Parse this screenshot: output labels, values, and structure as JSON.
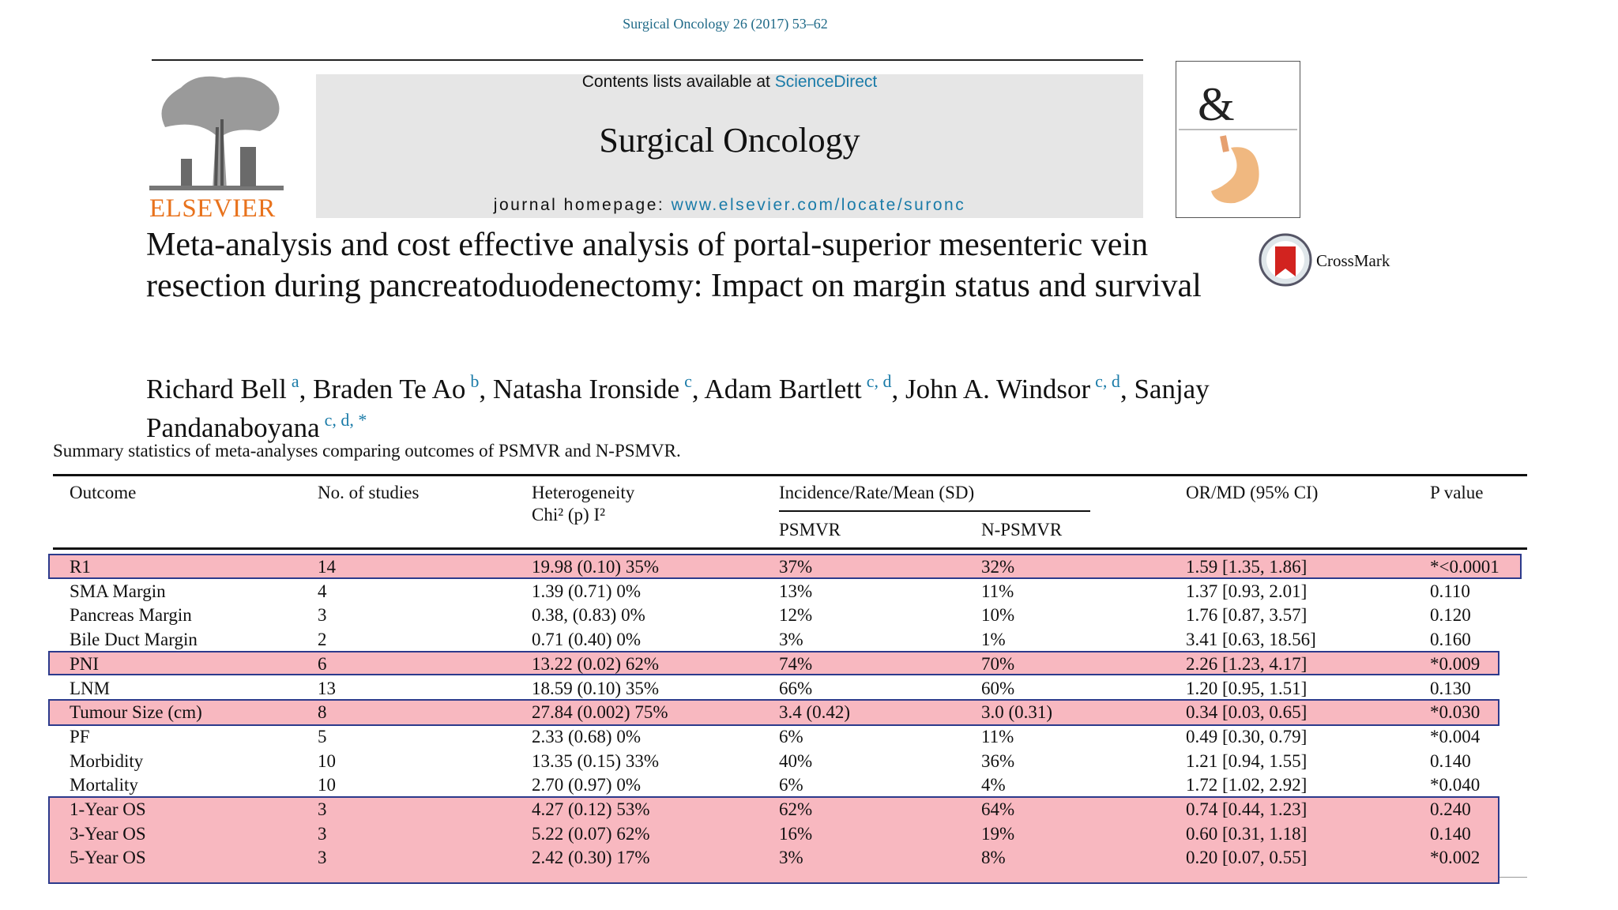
{
  "header": {
    "journal_ref": "Surgical Oncology 26 (2017) 53–62",
    "contents_label": "Contents lists available at",
    "contents_link": "ScienceDirect",
    "journal": "Surgical Oncology",
    "homepage_label": "journal homepage:",
    "homepage_url": "www.elsevier.com/locate/suronc",
    "publisher": "ELSEVIER",
    "crossmark": "CrossMark"
  },
  "article": {
    "title": "Meta-analysis and cost effective analysis of portal-superior mesenteric vein resection during pancreatoduodenectomy: Impact on margin status and survival",
    "authors": [
      {
        "name": "Richard Bell",
        "affil": "a"
      },
      {
        "name": "Braden Te Ao",
        "affil": "b"
      },
      {
        "name": "Natasha Ironside",
        "affil": "c"
      },
      {
        "name": "Adam Bartlett",
        "affil": "c, d"
      },
      {
        "name": "John A. Windsor",
        "affil": "c, d"
      },
      {
        "name": "Sanjay Pandanaboyana",
        "affil": "c, d, *"
      }
    ]
  },
  "table": {
    "caption": "Summary statistics of meta-analyses comparing outcomes of PSMVR and N-PSMVR.",
    "headers": [
      "Outcome",
      "No. of studies",
      "Heterogeneity",
      "Chi² (p) I²",
      "Incidence/Rate/Mean (SD)",
      "PSMVR",
      "N-PSMVR",
      "OR/MD (95% CI)",
      "P value"
    ],
    "rows": [
      [
        "R1",
        "14",
        "19.98 (0.10) 35%",
        "37%",
        "32%",
        "1.59 [1.35, 1.86]",
        "*<0.0001"
      ],
      [
        "SMA Margin",
        "4",
        "1.39 (0.71) 0%",
        "13%",
        "11%",
        "1.37 [0.93, 2.01]",
        "0.110"
      ],
      [
        "Pancreas Margin",
        "3",
        "0.38, (0.83) 0%",
        "12%",
        "10%",
        "1.76 [0.87, 3.57]",
        "0.120"
      ],
      [
        "Bile Duct Margin",
        "2",
        "0.71 (0.40) 0%",
        "3%",
        "1%",
        "3.41 [0.63, 18.56]",
        "0.160"
      ],
      [
        "PNI",
        "6",
        "13.22 (0.02) 62%",
        "74%",
        "70%",
        "2.26 [1.23, 4.17]",
        "*0.009"
      ],
      [
        "LNM",
        "13",
        "18.59 (0.10) 35%",
        "66%",
        "60%",
        "1.20 [0.95, 1.51]",
        "0.130"
      ],
      [
        "Tumour Size (cm)",
        "8",
        "27.84 (0.002) 75%",
        "3.4 (0.42)",
        "3.0 (0.31)",
        "0.34 [0.03, 0.65]",
        "*0.030"
      ],
      [
        "PF",
        "5",
        "2.33 (0.68) 0%",
        "6%",
        "11%",
        "0.49 [0.30, 0.79]",
        "*0.004"
      ],
      [
        "Morbidity",
        "10",
        "13.35 (0.15) 33%",
        "40%",
        "36%",
        "1.21 [0.94, 1.55]",
        "0.140"
      ],
      [
        "Mortality",
        "10",
        "2.70 (0.97) 0%",
        "6%",
        "4%",
        "1.72 [1.02, 2.92]",
        "*0.040"
      ],
      [
        "1-Year OS",
        "3",
        "4.27 (0.12) 53%",
        "62%",
        "64%",
        "0.74 [0.44, 1.23]",
        "0.240"
      ],
      [
        "3-Year OS",
        "3",
        "5.22 (0.07) 62%",
        "16%",
        "19%",
        "0.60 [0.31, 1.18]",
        "0.140"
      ],
      [
        "5-Year OS",
        "3",
        "2.42 (0.30) 17%",
        "3%",
        "8%",
        "0.20 [0.07, 0.55]",
        "*0.002"
      ]
    ]
  }
}
